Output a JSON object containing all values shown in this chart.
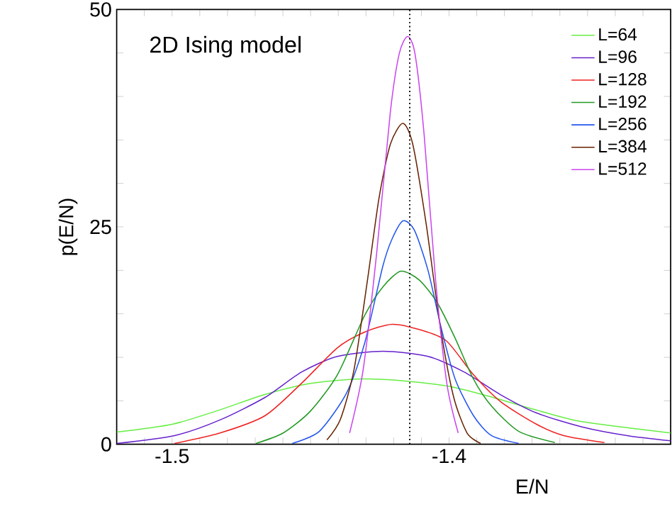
{
  "chart_data": {
    "type": "line",
    "xlabel": "E/N",
    "ylabel": "p(E/N)",
    "annotations": [
      "2D Ising model"
    ],
    "xlim": [
      -1.52,
      -1.32
    ],
    "ylim": [
      0,
      50
    ],
    "xticks": [
      {
        "value": -1.51,
        "label": null
      },
      -1.5,
      {
        "value": -1.49,
        "label": null
      },
      {
        "value": -1.48,
        "label": null
      },
      {
        "value": -1.47,
        "label": null
      },
      {
        "value": -1.46,
        "label": null
      },
      {
        "value": -1.45,
        "label": null
      },
      {
        "value": -1.44,
        "label": null
      },
      {
        "value": -1.43,
        "label": null
      },
      {
        "value": -1.42,
        "label": null
      },
      {
        "value": -1.41,
        "label": null
      },
      -1.4,
      {
        "value": -1.39,
        "label": null
      },
      {
        "value": -1.38,
        "label": null
      },
      {
        "value": -1.37,
        "label": null
      },
      {
        "value": -1.36,
        "label": null
      },
      {
        "value": -1.35,
        "label": null
      },
      {
        "value": -1.34,
        "label": null
      },
      {
        "value": -1.33,
        "label": null
      }
    ],
    "yticks": [
      0,
      {
        "value": 5,
        "label": null
      },
      {
        "value": 10,
        "label": null
      },
      {
        "value": 15,
        "label": null
      },
      {
        "value": 20,
        "label": null
      },
      25,
      {
        "value": 30,
        "label": null
      },
      {
        "value": 35,
        "label": null
      },
      {
        "value": 40,
        "label": null
      },
      {
        "value": 45,
        "label": null
      },
      50
    ],
    "legend": "top right",
    "line_style": "solid",
    "marker": "none",
    "ref_lines": [
      {
        "axis": "x",
        "value": -1.4142,
        "color": "#000000",
        "line_style": "dotted"
      }
    ],
    "series": [
      {
        "name": "L=64",
        "color": "#66ee44",
        "x": [
          -1.52,
          -1.5,
          -1.4833,
          -1.4667,
          -1.45,
          -1.4333,
          -1.42,
          -1.4006,
          -1.3843,
          -1.368,
          -1.352,
          -1.32
        ],
        "values": [
          1.4,
          2.3,
          3.9,
          5.7,
          7.0,
          7.5,
          7.4,
          6.7,
          5.4,
          3.9,
          2.6,
          1.3
        ]
      },
      {
        "name": "L=96",
        "color": "#6622cc",
        "x": [
          -1.52,
          -1.4991,
          -1.4827,
          -1.4664,
          -1.4533,
          -1.4403,
          -1.4239,
          -1.4076,
          -1.3945,
          -1.3814,
          -1.3684,
          -1.352,
          -1.3357,
          -1.32
        ],
        "values": [
          0.1,
          1.0,
          2.8,
          5.4,
          8.3,
          10.1,
          10.7,
          10.1,
          8.3,
          5.7,
          3.6,
          2.0,
          1.0,
          0.4
        ]
      },
      {
        "name": "L=128",
        "color": "#ee2222",
        "x": [
          -1.4991,
          -1.4827,
          -1.4664,
          -1.4533,
          -1.4403,
          -1.4305,
          -1.4206,
          -1.4108,
          -1.401,
          -1.3912,
          -1.3814,
          -1.3684,
          -1.3586,
          -1.3439
        ],
        "values": [
          0.1,
          1.3,
          3.3,
          7.0,
          11.1,
          12.9,
          13.8,
          13.2,
          11.9,
          8.0,
          4.9,
          2.3,
          1.0,
          0.2
        ]
      },
      {
        "name": "L=192",
        "color": "#229922",
        "x": [
          -1.4697,
          -1.4599,
          -1.4501,
          -1.4403,
          -1.4305,
          -1.4239,
          -1.4174,
          -1.4108,
          -1.4043,
          -1.3978,
          -1.3912,
          -1.3847,
          -1.3749,
          -1.3618
        ],
        "values": [
          0.1,
          1.3,
          3.8,
          8.0,
          14.8,
          18.1,
          19.9,
          18.9,
          16.3,
          12.2,
          7.5,
          4.4,
          1.5,
          0.2
        ]
      },
      {
        "name": "L=256",
        "color": "#2255ee",
        "x": [
          -1.4566,
          -1.4468,
          -1.437,
          -1.4305,
          -1.4239,
          -1.4206,
          -1.4166,
          -1.4125,
          -1.4076,
          -1.4027,
          -1.3978,
          -1.3912,
          -1.3847,
          -1.3749
        ],
        "values": [
          0.1,
          1.5,
          5.9,
          11.6,
          20.5,
          23.6,
          25.7,
          24.6,
          20.0,
          13.2,
          7.5,
          3.3,
          1.0,
          0.1
        ]
      },
      {
        "name": "L=384",
        "color": "#662200",
        "x": [
          -1.4441,
          -1.4392,
          -1.4343,
          -1.4294,
          -1.4253,
          -1.4212,
          -1.4167,
          -1.4131,
          -1.4082,
          -1.4033,
          -1.3984,
          -1.3935,
          -1.3886
        ],
        "values": [
          0.5,
          2.9,
          8.6,
          19.0,
          28.3,
          34.5,
          36.9,
          34.5,
          25.2,
          13.8,
          5.5,
          1.3,
          0.1
        ]
      },
      {
        "name": "L=512",
        "color": "#cc44ee",
        "x": [
          -1.4359,
          -1.431,
          -1.4261,
          -1.4212,
          -1.418,
          -1.415,
          -1.4123,
          -1.409,
          -1.4049,
          -1.4008,
          -1.3967
        ],
        "values": [
          1.3,
          8.6,
          22.1,
          38.2,
          44.9,
          46.9,
          44.9,
          35.6,
          19.0,
          7.0,
          1.3
        ]
      }
    ]
  }
}
